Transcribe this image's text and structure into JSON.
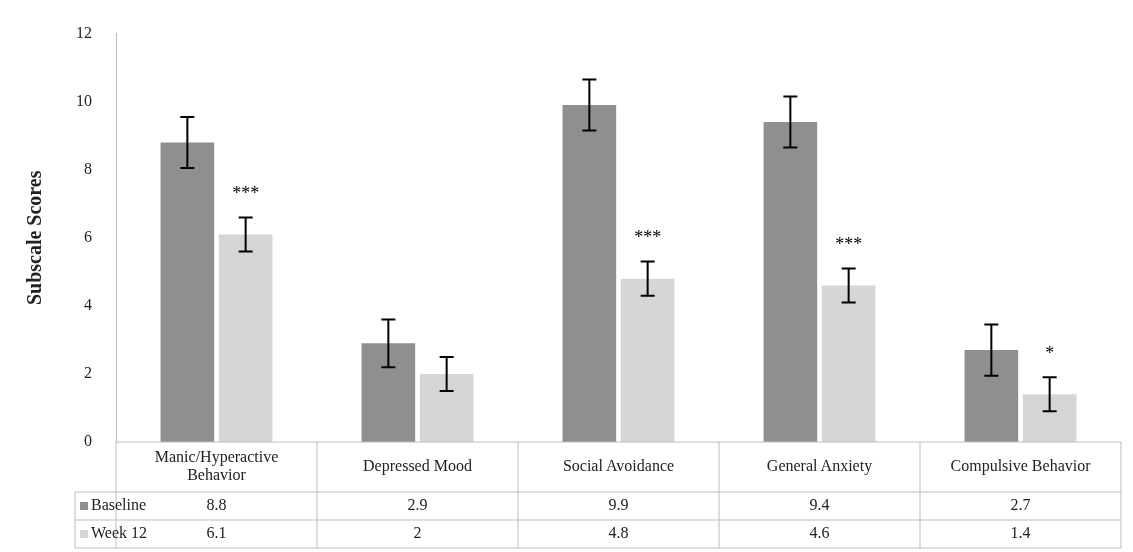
{
  "chart_data": {
    "type": "bar",
    "ylabel": "Subscale Scores",
    "categories": [
      "Manic/Hyperactive Behavior",
      "Depressed Mood",
      "Social Avoidance",
      "General Anxiety",
      "Compulsive Behavior"
    ],
    "series": [
      {
        "name": "Baseline",
        "color": "#8f8f8f",
        "values": [
          8.8,
          2.9,
          9.9,
          9.4,
          2.7
        ],
        "errors": [
          0.75,
          0.7,
          0.75,
          0.75,
          0.75
        ]
      },
      {
        "name": "Week 12",
        "color": "#d6d6d6",
        "values": [
          6.1,
          2,
          4.8,
          4.6,
          1.4
        ],
        "errors": [
          0.5,
          0.5,
          0.5,
          0.5,
          0.5
        ]
      }
    ],
    "ylim": [
      0,
      12
    ],
    "yticks": [
      0,
      2,
      4,
      6,
      8,
      10,
      12
    ],
    "grid": false,
    "legend": "bottom",
    "data_labels": true,
    "annotations": [
      {
        "text": "***",
        "x": "Manic/Hyperactive Behavior",
        "y": 7.2
      },
      {
        "text": "***",
        "x": "Social Avoidance",
        "y": 5.9
      },
      {
        "text": "***",
        "x": "General Anxiety",
        "y": 5.7
      },
      {
        "text": "*",
        "x": "Compulsive Behavior",
        "y": 2.5
      }
    ]
  }
}
